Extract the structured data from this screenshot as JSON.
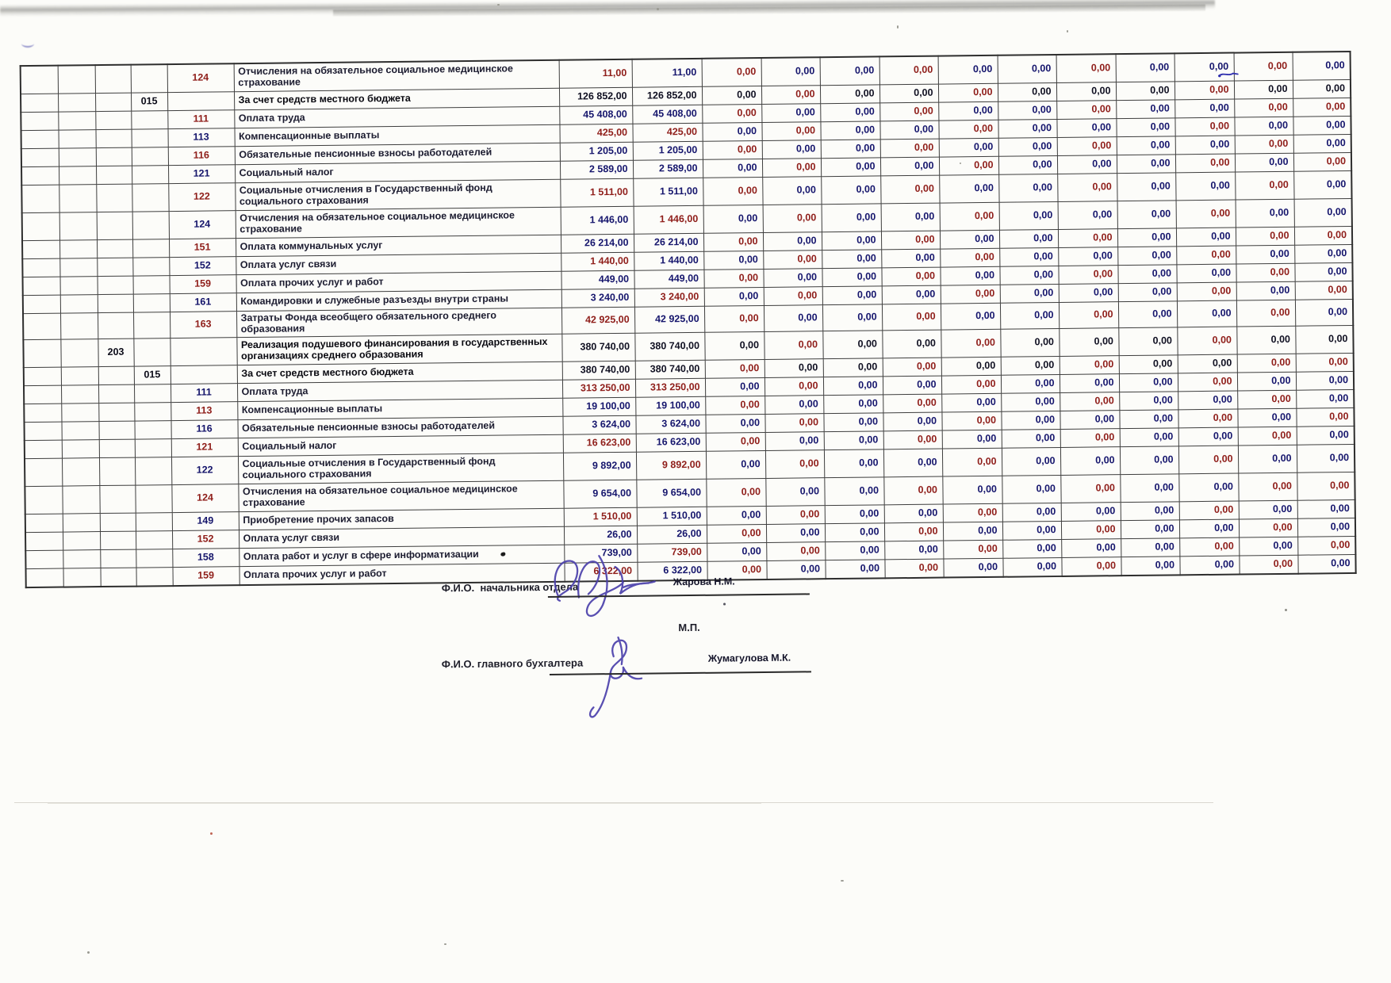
{
  "table": {
    "zero": "0,00",
    "zero_columns": 11,
    "rows": [
      {
        "program": "",
        "subprogram": "",
        "specific": "124",
        "description": "Отчисления на обязательное социальное медицинское страхование",
        "value": "11,00",
        "bold": false
      },
      {
        "program": "",
        "subprogram": "015",
        "specific": "",
        "description": "За счет средств местного бюджета",
        "value": "126 852,00",
        "bold": true
      },
      {
        "program": "",
        "subprogram": "",
        "specific": "111",
        "description": "Оплата труда",
        "value": "45 408,00",
        "bold": false
      },
      {
        "program": "",
        "subprogram": "",
        "specific": "113",
        "description": "Компенсационные выплаты",
        "value": "425,00",
        "bold": false
      },
      {
        "program": "",
        "subprogram": "",
        "specific": "116",
        "description": "Обязательные пенсионные взносы работодателей",
        "value": "1 205,00",
        "bold": false
      },
      {
        "program": "",
        "subprogram": "",
        "specific": "121",
        "description": "Социальный налог",
        "value": "2 589,00",
        "bold": false
      },
      {
        "program": "",
        "subprogram": "",
        "specific": "122",
        "description": "Социальные отчисления в Государственный фонд социального страхования",
        "value": "1 511,00",
        "bold": false
      },
      {
        "program": "",
        "subprogram": "",
        "specific": "124",
        "description": "Отчисления на обязательное социальное медицинское страхование",
        "value": "1 446,00",
        "bold": false
      },
      {
        "program": "",
        "subprogram": "",
        "specific": "151",
        "description": "Оплата коммунальных услуг",
        "value": "26 214,00",
        "bold": false
      },
      {
        "program": "",
        "subprogram": "",
        "specific": "152",
        "description": "Оплата услуг связи",
        "value": "1 440,00",
        "bold": false
      },
      {
        "program": "",
        "subprogram": "",
        "specific": "159",
        "description": "Оплата прочих услуг и работ",
        "value": "449,00",
        "bold": false
      },
      {
        "program": "",
        "subprogram": "",
        "specific": "161",
        "description": "Командировки и служебные разъезды внутри страны",
        "value": "3 240,00",
        "bold": false
      },
      {
        "program": "",
        "subprogram": "",
        "specific": "163",
        "description": "Затраты Фонда всеобщего обязательного среднего образования",
        "value": "42 925,00",
        "bold": false
      },
      {
        "program": "203",
        "subprogram": "",
        "specific": "",
        "description": "Реализация подушевого финансирования в государственных организациях среднего образования",
        "value": "380 740,00",
        "bold": true
      },
      {
        "program": "",
        "subprogram": "015",
        "specific": "",
        "description": "За счет средств местного бюджета",
        "value": "380 740,00",
        "bold": true
      },
      {
        "program": "",
        "subprogram": "",
        "specific": "111",
        "description": "Оплата труда",
        "value": "313 250,00",
        "bold": false
      },
      {
        "program": "",
        "subprogram": "",
        "specific": "113",
        "description": "Компенсационные выплаты",
        "value": "19 100,00",
        "bold": false
      },
      {
        "program": "",
        "subprogram": "",
        "specific": "116",
        "description": "Обязательные пенсионные взносы работодателей",
        "value": "3 624,00",
        "bold": false
      },
      {
        "program": "",
        "subprogram": "",
        "specific": "121",
        "description": "Социальный налог",
        "value": "16 623,00",
        "bold": false
      },
      {
        "program": "",
        "subprogram": "",
        "specific": "122",
        "description": "Социальные отчисления в Государственный фонд социального страхования",
        "value": "9 892,00",
        "bold": false
      },
      {
        "program": "",
        "subprogram": "",
        "specific": "124",
        "description": "Отчисления на обязательное социальное медицинское страхование",
        "value": "9 654,00",
        "bold": false
      },
      {
        "program": "",
        "subprogram": "",
        "specific": "149",
        "description": "Приобретение прочих запасов",
        "value": "1 510,00",
        "bold": false
      },
      {
        "program": "",
        "subprogram": "",
        "specific": "152",
        "description": "Оплата услуг связи",
        "value": "26,00",
        "bold": false
      },
      {
        "program": "",
        "subprogram": "",
        "specific": "158",
        "description": "Оплата работ  и услуг в сфере информатизации",
        "value": "739,00",
        "bold": false
      },
      {
        "program": "",
        "subprogram": "",
        "specific": "159",
        "description": "Оплата прочих услуг и работ",
        "value": "6 322,00",
        "bold": false
      }
    ]
  },
  "signatures": {
    "head_label": "Ф.И.О.  начальника отдела",
    "head_name": "Жарова Н.М.",
    "stamp": "М.П.",
    "accountant_label": "Ф.И.О. главного бухгалтера",
    "accountant_name": "Жумагулова М.К."
  },
  "ink_color": "#4b40ab"
}
